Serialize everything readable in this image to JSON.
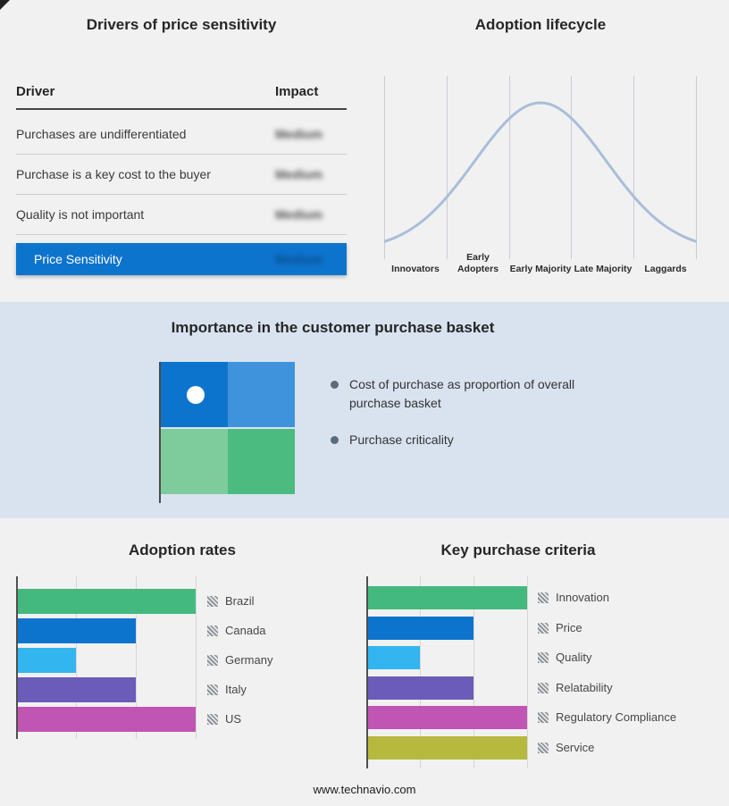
{
  "footer": {
    "url": "www.technavio.com"
  },
  "palette": {
    "accent_blue": "#0d74ce",
    "band_background": "#d9e3f0",
    "page_background": "#f1f1f2",
    "curve": "#a9bed8",
    "redacted_text": "#4f4f4f"
  },
  "basket": {
    "title": "Importance in the customer purchase basket",
    "bullets": [
      "Cost of purchase as proportion of overall purchase basket",
      "Purchase criticality"
    ],
    "quadrant_colors": [
      "#0d74ce",
      "#3f93dc",
      "#7ecc9c",
      "#4cbb80"
    ],
    "marker_position": "top-left"
  },
  "chart_data": [
    {
      "type": "table",
      "title": "Drivers of price sensitivity",
      "columns": [
        "Driver",
        "Impact"
      ],
      "rows": [
        [
          "Purchases are undifferentiated",
          "Medium"
        ],
        [
          "Purchase is a key cost to the buyer",
          "Medium"
        ],
        [
          "Quality is not important",
          "Medium"
        ]
      ],
      "summary": [
        "Price Sensitivity",
        "Medium"
      ],
      "note": "Impact values appear blurred/redacted in the source image"
    },
    {
      "type": "line",
      "title": "Adoption lifecycle",
      "shape": "bell-curve",
      "categories": [
        "Innovators",
        "Early Adopters",
        "Early Majority",
        "Late Majority",
        "Laggards"
      ],
      "values": [
        0.16,
        0.63,
        1.0,
        0.63,
        0.16
      ],
      "xlabel": "",
      "ylabel": "",
      "grid": "vertical-only",
      "legend": "none"
    },
    {
      "type": "bar",
      "title": "Adoption rates",
      "orientation": "horizontal",
      "categories": [
        "Brazil",
        "Canada",
        "Germany",
        "Italy",
        "US"
      ],
      "values": [
        3,
        2,
        1,
        2,
        3
      ],
      "xlim": [
        0,
        3
      ],
      "colors": [
        "#44b97f",
        "#0d74ce",
        "#33b5ef",
        "#6a5cb8",
        "#c055b4"
      ],
      "legend_position": "right",
      "note": "axis unlabeled; values estimated in gridline units"
    },
    {
      "type": "bar",
      "title": "Key purchase criteria",
      "orientation": "horizontal",
      "categories": [
        "Innovation",
        "Price",
        "Quality",
        "Relatability",
        "Regulatory Compliance",
        "Service"
      ],
      "values": [
        3,
        2,
        1,
        2,
        3,
        3
      ],
      "xlim": [
        0,
        3
      ],
      "colors": [
        "#44b97f",
        "#0d74ce",
        "#33b5ef",
        "#6a5cb8",
        "#c055b4",
        "#b6b93d"
      ],
      "legend_position": "right",
      "note": "axis unlabeled; values estimated in gridline units"
    }
  ]
}
